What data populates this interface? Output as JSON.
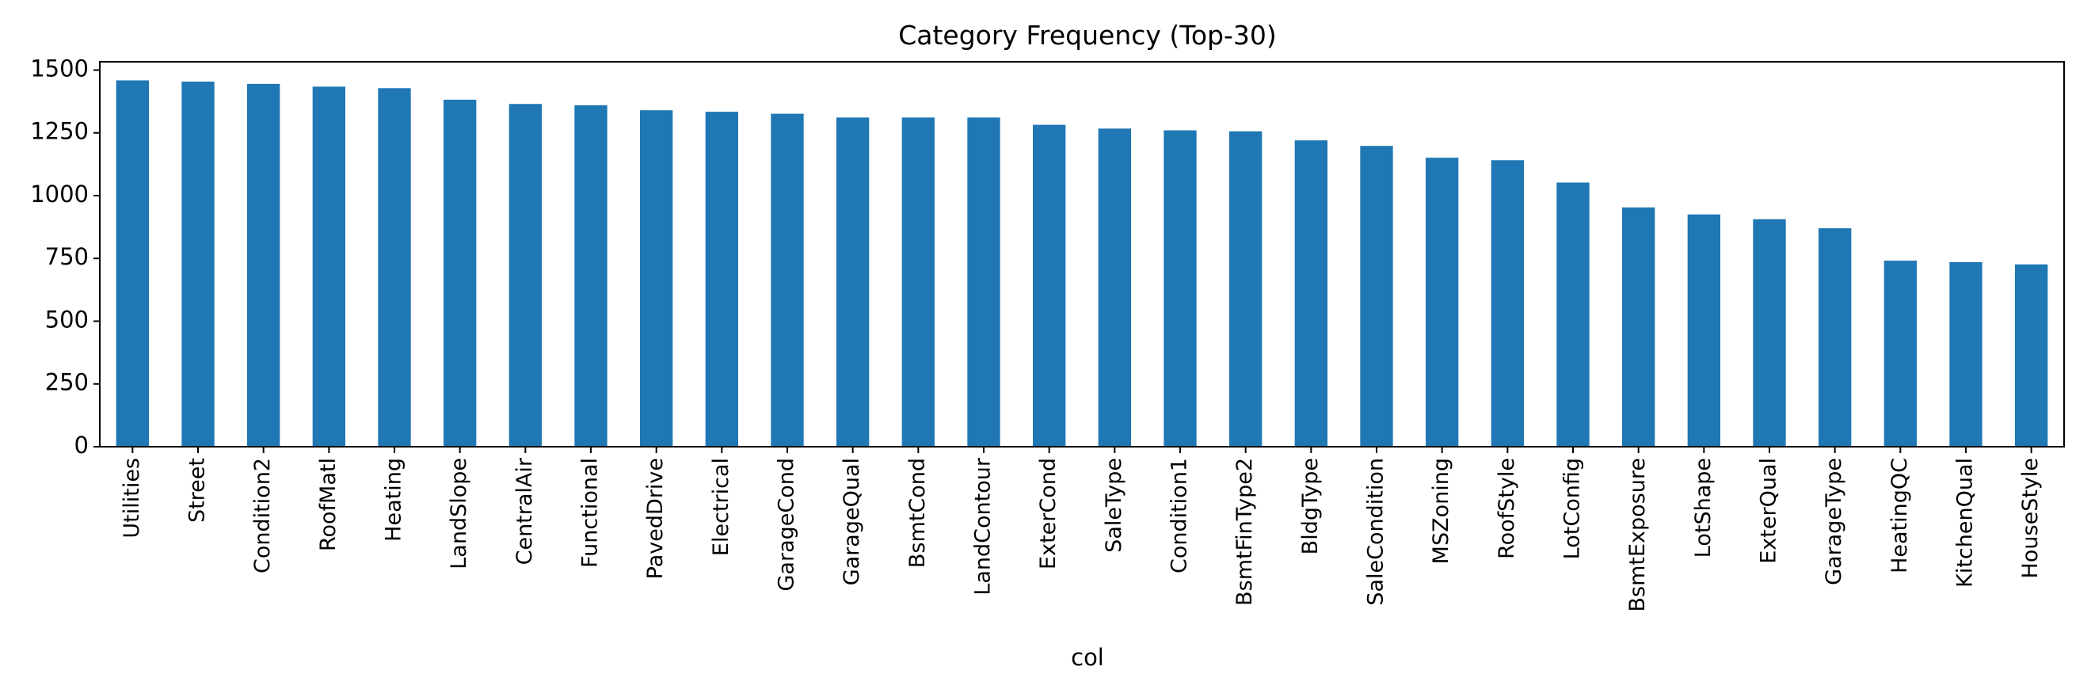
{
  "chart_data": {
    "type": "bar",
    "title": "Category Frequency (Top-30)",
    "xlabel": "col",
    "ylabel": "",
    "ylim": [
      0,
      1533
    ],
    "yticks": [
      0,
      250,
      500,
      750,
      1000,
      1250,
      1500
    ],
    "grid": false,
    "color": "#1f77b4",
    "categories": [
      "Utilities",
      "Street",
      "Condition2",
      "RoofMatl",
      "Heating",
      "LandSlope",
      "CentralAir",
      "Functional",
      "PavedDrive",
      "Electrical",
      "GarageCond",
      "GarageQual",
      "BsmtCond",
      "LandContour",
      "ExterCond",
      "SaleType",
      "Condition1",
      "BsmtFinType2",
      "BldgType",
      "SaleCondition",
      "MSZoning",
      "RoofStyle",
      "LotConfig",
      "BsmtExposure",
      "LotShape",
      "ExterQual",
      "GarageType",
      "HeatingQC",
      "KitchenQual",
      "HouseStyle"
    ],
    "values": [
      1459,
      1454,
      1445,
      1434,
      1428,
      1382,
      1365,
      1360,
      1340,
      1334,
      1326,
      1311,
      1311,
      1311,
      1282,
      1267,
      1260,
      1256,
      1220,
      1198,
      1151,
      1141,
      1052,
      953,
      925,
      906,
      870,
      741,
      735,
      726
    ]
  }
}
